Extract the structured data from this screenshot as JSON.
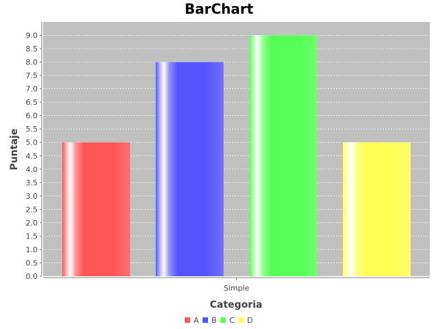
{
  "colors": {
    "plot_background": "#c0c0c0",
    "gridline": "#ffffff",
    "axis": "#808080",
    "text": "#444444",
    "title": "#000000"
  },
  "chart_data": {
    "type": "bar",
    "title": "BarChart",
    "xlabel": "Categoria",
    "ylabel": "Puntaje",
    "categories": [
      "Simple"
    ],
    "series": [
      {
        "name": "A",
        "values": [
          5.0
        ],
        "color": "#ff5555"
      },
      {
        "name": "B",
        "values": [
          8.0
        ],
        "color": "#5555ff"
      },
      {
        "name": "C",
        "values": [
          9.0
        ],
        "color": "#55ff55"
      },
      {
        "name": "D",
        "values": [
          5.0
        ],
        "color": "#ffff55"
      }
    ],
    "ylim": [
      0,
      9.5
    ],
    "y_ticks": [
      "0.0",
      "0.5",
      "1.0",
      "1.5",
      "2.0",
      "2.5",
      "3.0",
      "3.5",
      "4.0",
      "4.5",
      "5.0",
      "5.5",
      "6.0",
      "6.5",
      "7.0",
      "7.5",
      "8.0",
      "8.5",
      "9.0"
    ],
    "grid": true,
    "legend_position": "bottom"
  }
}
